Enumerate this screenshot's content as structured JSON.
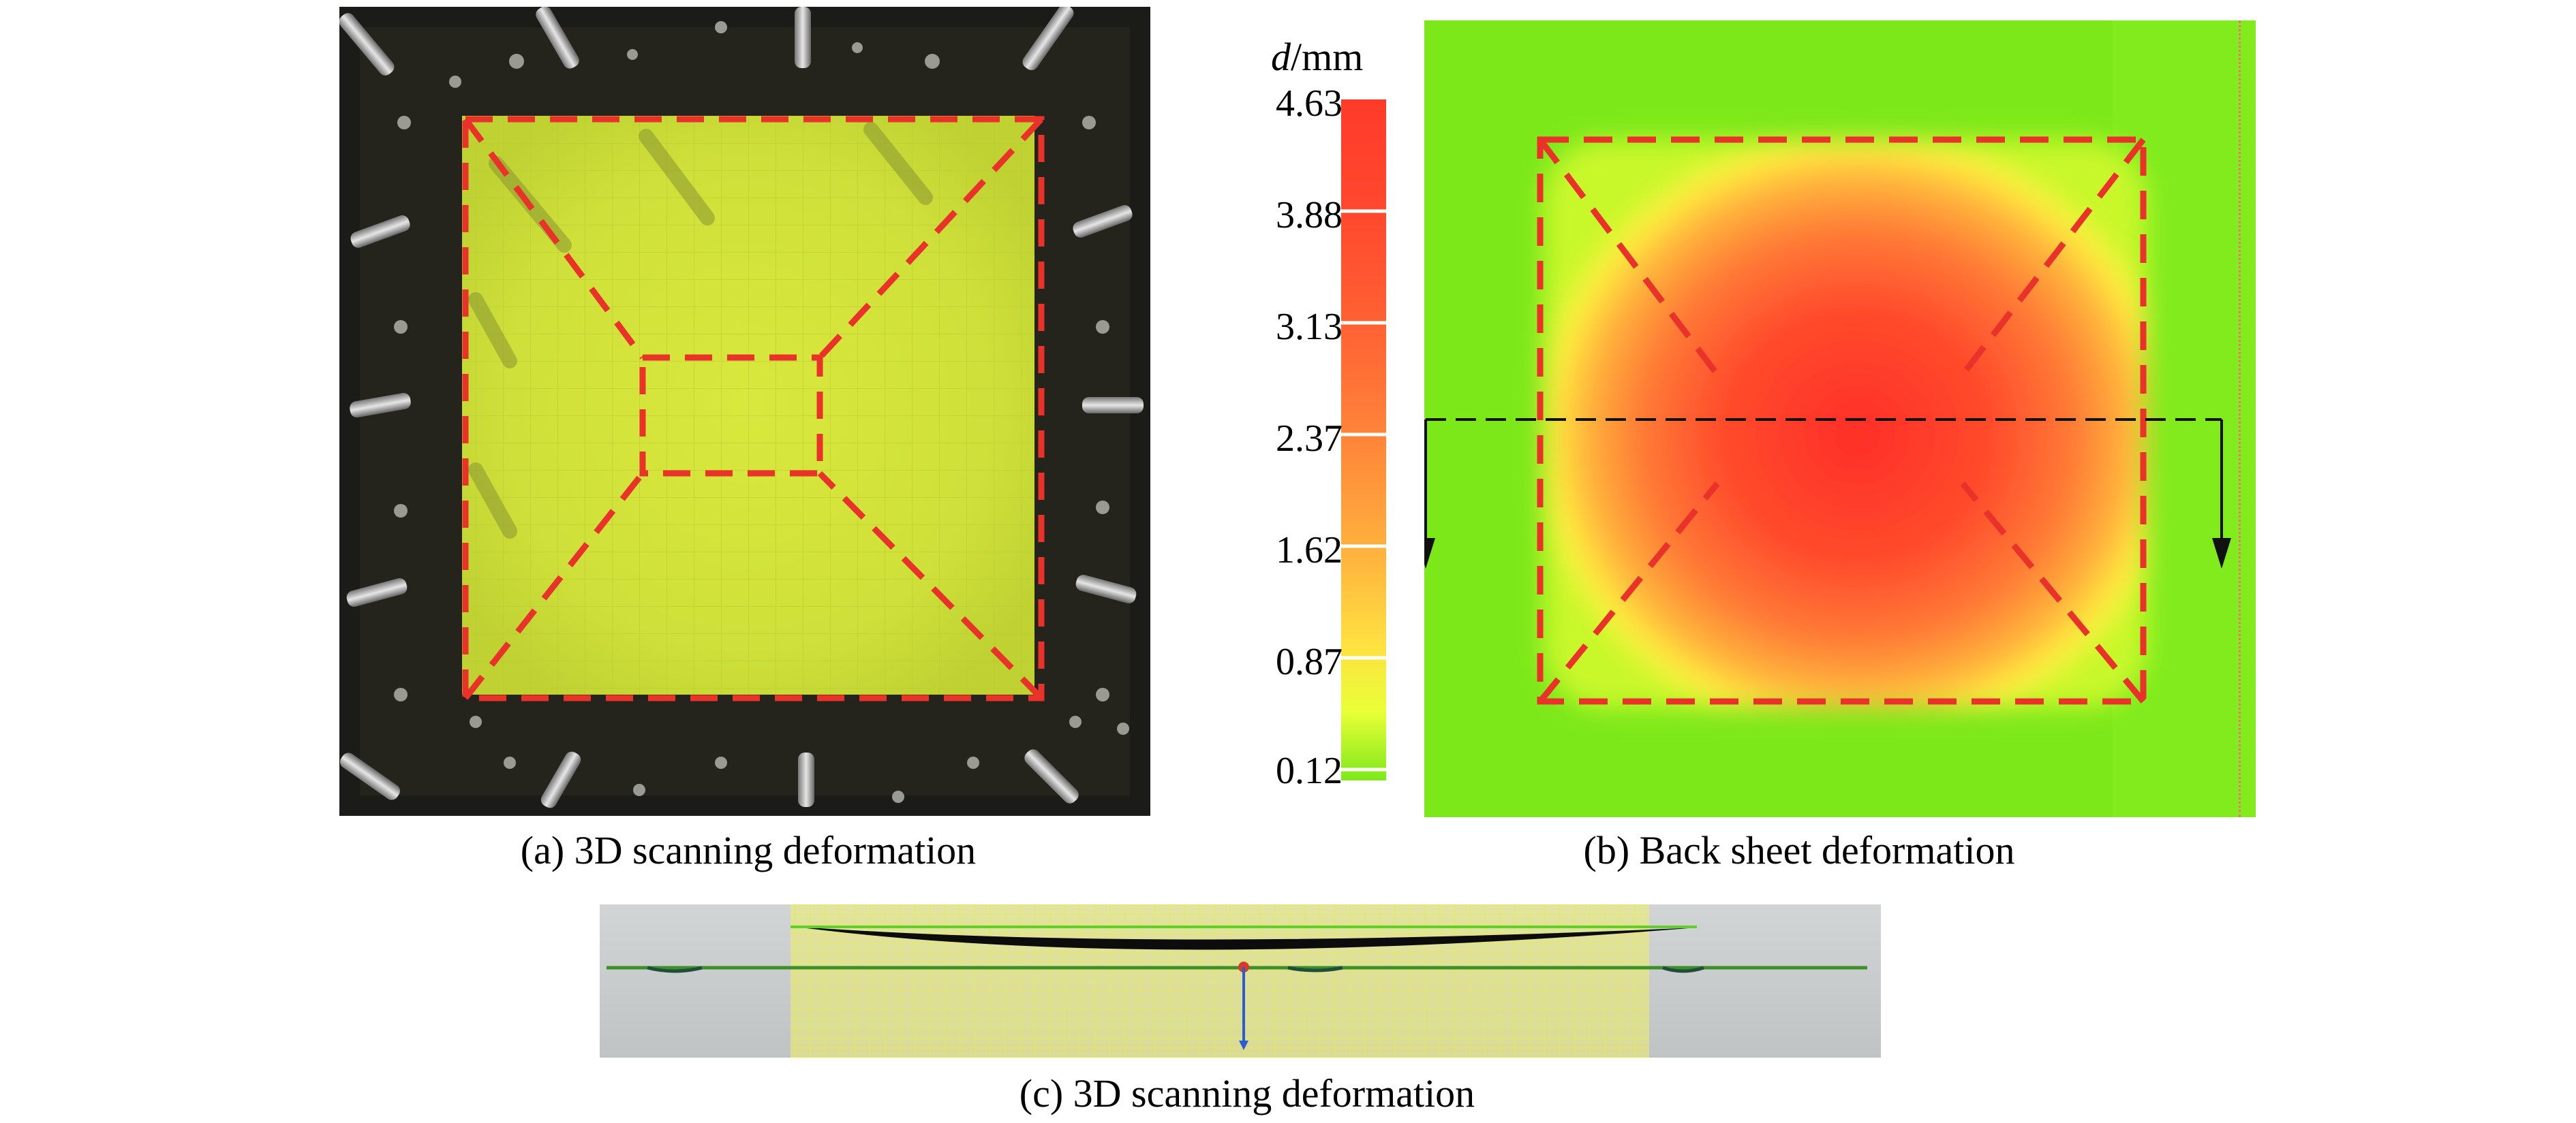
{
  "panels": {
    "a": {
      "caption": "(a) 3D scanning deformation"
    },
    "b": {
      "caption": "(b) Back sheet deformation"
    },
    "c": {
      "caption": "(c) 3D scanning deformation"
    }
  },
  "colorbar": {
    "title_var": "d",
    "title_unit": "/mm",
    "ticks": [
      "4.63",
      "3.88",
      "3.13",
      "2.37",
      "1.62",
      "0.87",
      "0.12"
    ],
    "colors": [
      "#ff3a2a",
      "#ff5530",
      "#ff7536",
      "#ff9c3c",
      "#ffc840",
      "#ffee40",
      "#d8ff30",
      "#7ee81a"
    ]
  }
}
